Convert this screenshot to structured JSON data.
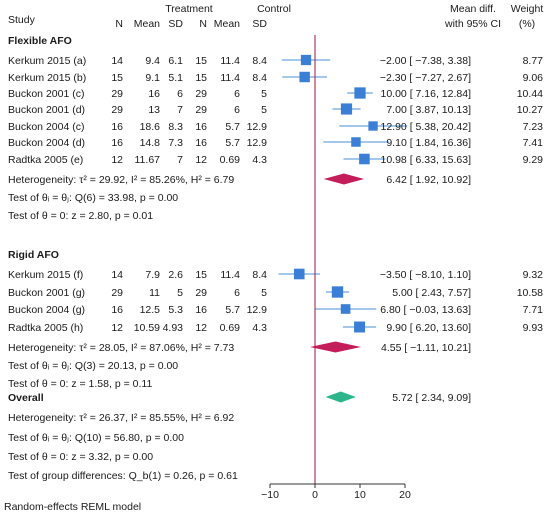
{
  "chart_data": {
    "type": "forest",
    "headers": {
      "study": "Study",
      "treatment_group": "Treatment",
      "control_group": "Control",
      "treatment_cols": [
        "N",
        "Mean",
        "SD"
      ],
      "control_cols": [
        "N",
        "Mean",
        "SD"
      ],
      "effect_line1": "Mean diff.",
      "effect_line2": "with 95% CI",
      "weight_line1": "Weight",
      "weight_line2": "(%)"
    },
    "groups": [
      {
        "name": "Flexible AFO",
        "studies": [
          {
            "study": "Kerkum 2015 (a)",
            "t_n": "14",
            "t_mean": "9.4",
            "t_sd": "6.1",
            "c_n": "15",
            "c_mean": "11.4",
            "c_sd": "8.4",
            "md": -2.0,
            "lo": -7.38,
            "hi": 3.38,
            "ci_text": "−2.00 [ −7.38,  3.38]",
            "weight": "8.77"
          },
          {
            "study": "Kerkum 2015 (b)",
            "t_n": "15",
            "t_mean": "9.1",
            "t_sd": "5.1",
            "c_n": "15",
            "c_mean": "11.4",
            "c_sd": "8.4",
            "md": -2.3,
            "lo": -7.27,
            "hi": 2.67,
            "ci_text": "−2.30 [ −7.27,  2.67]",
            "weight": "9.06"
          },
          {
            "study": "Buckon 2001 (c)",
            "t_n": "29",
            "t_mean": "16",
            "t_sd": "6",
            "c_n": "29",
            "c_mean": "6",
            "c_sd": "5",
            "md": 10.0,
            "lo": 7.16,
            "hi": 12.84,
            "ci_text": "10.00 [  7.16, 12.84]",
            "weight": "10.44"
          },
          {
            "study": "Buckon 2001 (d)",
            "t_n": "29",
            "t_mean": "13",
            "t_sd": "7",
            "c_n": "29",
            "c_mean": "6",
            "c_sd": "5",
            "md": 7.0,
            "lo": 3.87,
            "hi": 10.13,
            "ci_text": "7.00 [  3.87, 10.13]",
            "weight": "10.27"
          },
          {
            "study": "Buckon 2004 (c)",
            "t_n": "16",
            "t_mean": "18.6",
            "t_sd": "8.3",
            "c_n": "16",
            "c_mean": "5.7",
            "c_sd": "12.9",
            "md": 12.9,
            "lo": 5.38,
            "hi": 20.42,
            "ci_text": "12.90 [  5.38, 20.42]",
            "weight": "7.23"
          },
          {
            "study": "Buckon 2004 (d)",
            "t_n": "16",
            "t_mean": "14.8",
            "t_sd": "7.3",
            "c_n": "16",
            "c_mean": "5.7",
            "c_sd": "12.9",
            "md": 9.1,
            "lo": 1.84,
            "hi": 16.36,
            "ci_text": "9.10 [  1.84, 16.36]",
            "weight": "7.41"
          },
          {
            "study": "Radtka 2005 (e)",
            "t_n": "12",
            "t_mean": "11.67",
            "t_sd": "7",
            "c_n": "12",
            "c_mean": "0.69",
            "c_sd": "4.3",
            "md": 10.98,
            "lo": 6.33,
            "hi": 15.63,
            "ci_text": "10.98 [  6.33, 15.63]",
            "weight": "9.29"
          }
        ],
        "pooled": {
          "md": 6.42,
          "lo": 1.92,
          "hi": 10.92,
          "ci_text": "6.42 [  1.92, 10.92]"
        },
        "heterogeneity": "Heterogeneity: τ² = 29.92, I² = 85.26%, H² = 6.79",
        "test_theta": "Test of θᵢ = θⱼ: Q(6) = 33.98, p = 0.00",
        "test_zero": "Test of θ = 0: z = 2.80, p = 0.01"
      },
      {
        "name": "Rigid AFO",
        "studies": [
          {
            "study": "Kerkum 2015 (f)",
            "t_n": "14",
            "t_mean": "7.9",
            "t_sd": "2.6",
            "c_n": "15",
            "c_mean": "11.4",
            "c_sd": "8.4",
            "md": -3.5,
            "lo": -8.1,
            "hi": 1.1,
            "ci_text": "−3.50 [ −8.10,  1.10]",
            "weight": "9.32"
          },
          {
            "study": "Buckon 2001 (g)",
            "t_n": "29",
            "t_mean": "11",
            "t_sd": "5",
            "c_n": "29",
            "c_mean": "6",
            "c_sd": "5",
            "md": 5.0,
            "lo": 2.43,
            "hi": 7.57,
            "ci_text": "5.00 [  2.43,  7.57]",
            "weight": "10.58"
          },
          {
            "study": "Buckon 2004 (g)",
            "t_n": "16",
            "t_mean": "12.5",
            "t_sd": "5.3",
            "c_n": "16",
            "c_mean": "5.7",
            "c_sd": "12.9",
            "md": 6.8,
            "lo": -0.03,
            "hi": 13.63,
            "ci_text": "6.80 [ −0.03, 13.63]",
            "weight": "7.71"
          },
          {
            "study": "Radtka 2005 (h)",
            "t_n": "12",
            "t_mean": "10.59",
            "t_sd": "4.93",
            "c_n": "12",
            "c_mean": "0.69",
            "c_sd": "4.3",
            "md": 9.9,
            "lo": 6.2,
            "hi": 13.6,
            "ci_text": "9.90 [  6.20, 13.60]",
            "weight": "9.93"
          }
        ],
        "pooled": {
          "md": 4.55,
          "lo": -1.11,
          "hi": 10.21,
          "ci_text": "4.55 [ −1.11, 10.21]"
        },
        "heterogeneity": "Heterogeneity: τ² = 28.05, I² = 87.06%, H² = 7.73",
        "test_theta": "Test of θᵢ = θⱼ: Q(3) = 20.13, p = 0.00",
        "test_zero": "Test of θ = 0: z = 1.58, p = 0.11"
      }
    ],
    "overall": {
      "label": "Overall",
      "md": 5.72,
      "lo": 2.34,
      "hi": 9.09,
      "ci_text": "5.72 [  2.34,  9.09]",
      "heterogeneity": "Heterogeneity: τ² = 26.37, I² = 85.55%, H² = 6.92",
      "test_theta": "Test of θᵢ = θⱼ: Q(10) = 56.80, p = 0.00",
      "test_zero": "Test of θ = 0: z = 3.32, p = 0.00",
      "group_diff": "Test of group differences: Q_b(1) = 0.26, p = 0.61"
    },
    "x_ticks": [
      -10,
      0,
      10,
      20
    ],
    "x_tick_labels": [
      "−10",
      "0",
      "10",
      "20"
    ],
    "xlim": [
      -10,
      20
    ],
    "null_line": 0,
    "footnote": "Random-effects REML model",
    "colors": {
      "study_marker": "#3a7fd5",
      "ci_line": "#4a90d9",
      "group_diamond": "#c41e5a",
      "overall_diamond": "#2cb58a",
      "null_line": "#a0153e",
      "text": "#1a1a1a"
    }
  }
}
